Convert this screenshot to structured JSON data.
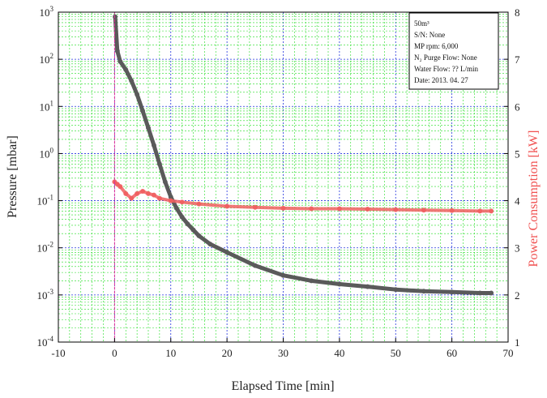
{
  "chart_data": {
    "type": "line",
    "title": "",
    "xlabel": "Elapsed Time [min]",
    "ylabel": "Pressure [mbar]",
    "y2label": "Power Consumption [kW]",
    "xlim": [
      -10,
      70
    ],
    "ylim": [
      0.0001,
      1000
    ],
    "y_scale": "log",
    "y2lim": [
      1,
      8
    ],
    "x_ticks": [
      "-10",
      "0",
      "10",
      "20",
      "30",
      "40",
      "50",
      "60",
      "70"
    ],
    "y_ticks": [
      "10-4",
      "10-3",
      "10-2",
      "10-1",
      "100",
      "101",
      "102",
      "103"
    ],
    "y2_ticks": [
      "1",
      "2",
      "3",
      "4",
      "5",
      "6",
      "7",
      "8"
    ],
    "grid": true,
    "grid_colors": {
      "minor": "#22dd22",
      "major": "#2233dd"
    },
    "annotation_box": {
      "position": "top-right",
      "lines": [
        "50m³",
        "S/N: None",
        "MP rpm: 6,000",
        "N₂ Purge Flow: None",
        "Water Flow: ?? L/min",
        "Date: 2013. 04. 27"
      ]
    },
    "series": [
      {
        "axis": "left",
        "color": "#5a5a5a",
        "x": [
          0.1,
          0.5,
          1,
          2,
          3,
          4,
          5,
          6,
          7,
          8,
          9,
          10,
          11,
          12,
          13,
          14,
          15,
          17,
          20,
          25,
          30,
          35,
          40,
          45,
          50,
          55,
          60,
          65,
          67
        ],
        "values": [
          800,
          150,
          90,
          60,
          35,
          18,
          8,
          3.5,
          1.5,
          0.6,
          0.25,
          0.12,
          0.07,
          0.045,
          0.032,
          0.024,
          0.018,
          0.012,
          0.008,
          0.0042,
          0.0026,
          0.002,
          0.0017,
          0.0015,
          0.0013,
          0.0012,
          0.00115,
          0.0011,
          0.0011
        ]
      },
      {
        "axis": "right",
        "color": "#f06060",
        "x": [
          0,
          0.5,
          1,
          2,
          3,
          4,
          5,
          6,
          7,
          8,
          10,
          12,
          15,
          20,
          25,
          30,
          35,
          40,
          45,
          50,
          55,
          60,
          65,
          67
        ],
        "values": [
          4.4,
          4.35,
          4.3,
          4.15,
          4.05,
          4.15,
          4.2,
          4.15,
          4.12,
          4.05,
          4.0,
          3.97,
          3.93,
          3.88,
          3.86,
          3.84,
          3.83,
          3.83,
          3.82,
          3.81,
          3.8,
          3.79,
          3.78,
          3.78
        ]
      },
      {
        "axis": "right",
        "color": "#e0309a",
        "x": [
          0,
          0
        ],
        "values": [
          1,
          8
        ]
      }
    ]
  }
}
